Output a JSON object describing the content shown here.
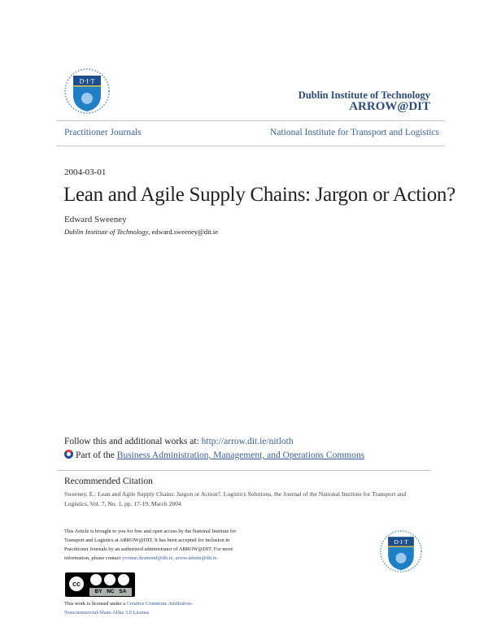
{
  "header": {
    "institution": "Dublin Institute of Technology",
    "repository": "ARROW@DIT",
    "logo_text": "D·I·T"
  },
  "nav": {
    "left": "Practitioner Journals",
    "right": "National Institute for Transport and Logistics"
  },
  "article": {
    "date": "2004-03-01",
    "title": "Lean and Agile Supply Chains: Jargon or Action?",
    "author": "Edward Sweeney",
    "affiliation": "Dublin Institute of Technology",
    "email": ", edward.sweeney@dit.ie"
  },
  "follow": {
    "prefix": "Follow this and additional works at: ",
    "url": "http://arrow.dit.ie/nitloth",
    "part_prefix": "Part of the ",
    "part_link": "Business Administration, Management, and Operations Commons"
  },
  "citation": {
    "heading": "Recommended Citation",
    "text": "Sweeney, E.: Lean and Agile Supply Chains: Jargon or Action?. Logistics Solutions, the Journal of the National Institute for Transport and Logistics, Vol. 7, No. 1, pp. 17-19, March 2004"
  },
  "footer": {
    "access_text": "This Article is brought to you for free and open access by the National Institute for Transport and Logistics at ARROW@DIT. It has been accepted for inclusion in Practitioner Journals by an authorized administrator of ARROW@DIT. For more information, please contact ",
    "contact_links": "yvonne.desmond@dit.ie, arrow.admin@dit.ie",
    "contact_suffix": ".",
    "cc_badge": "BY NC SA",
    "license_prefix": "This work is licensed under a ",
    "license_link": "Creative Commons Attribution-Noncommercial-Share Alike 3.0 License"
  },
  "colors": {
    "link": "#3b5f9a",
    "header": "#2b4c7e",
    "logo_blue": "#1f7fc4"
  }
}
